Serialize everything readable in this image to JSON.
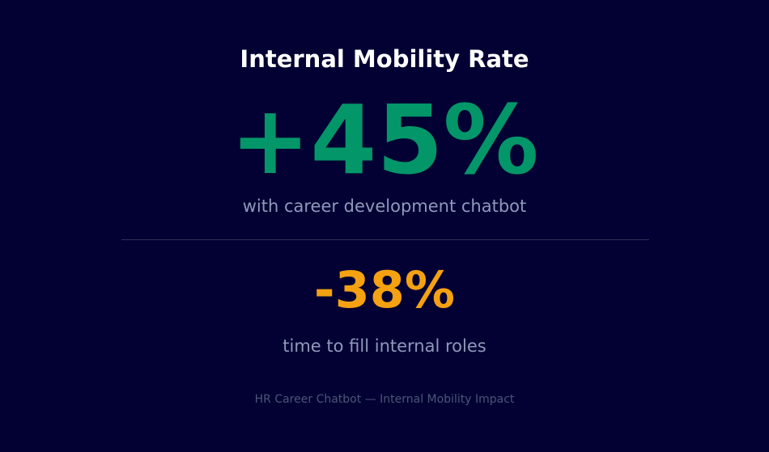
{
  "header": {
    "title": "Internal Mobility Rate"
  },
  "primary": {
    "value": "+45%",
    "caption": "with career development chatbot"
  },
  "secondary": {
    "value": "-38%",
    "caption": "time to fill internal roles"
  },
  "footer": {
    "text": "HR Career Chatbot — Internal Mobility Impact"
  }
}
